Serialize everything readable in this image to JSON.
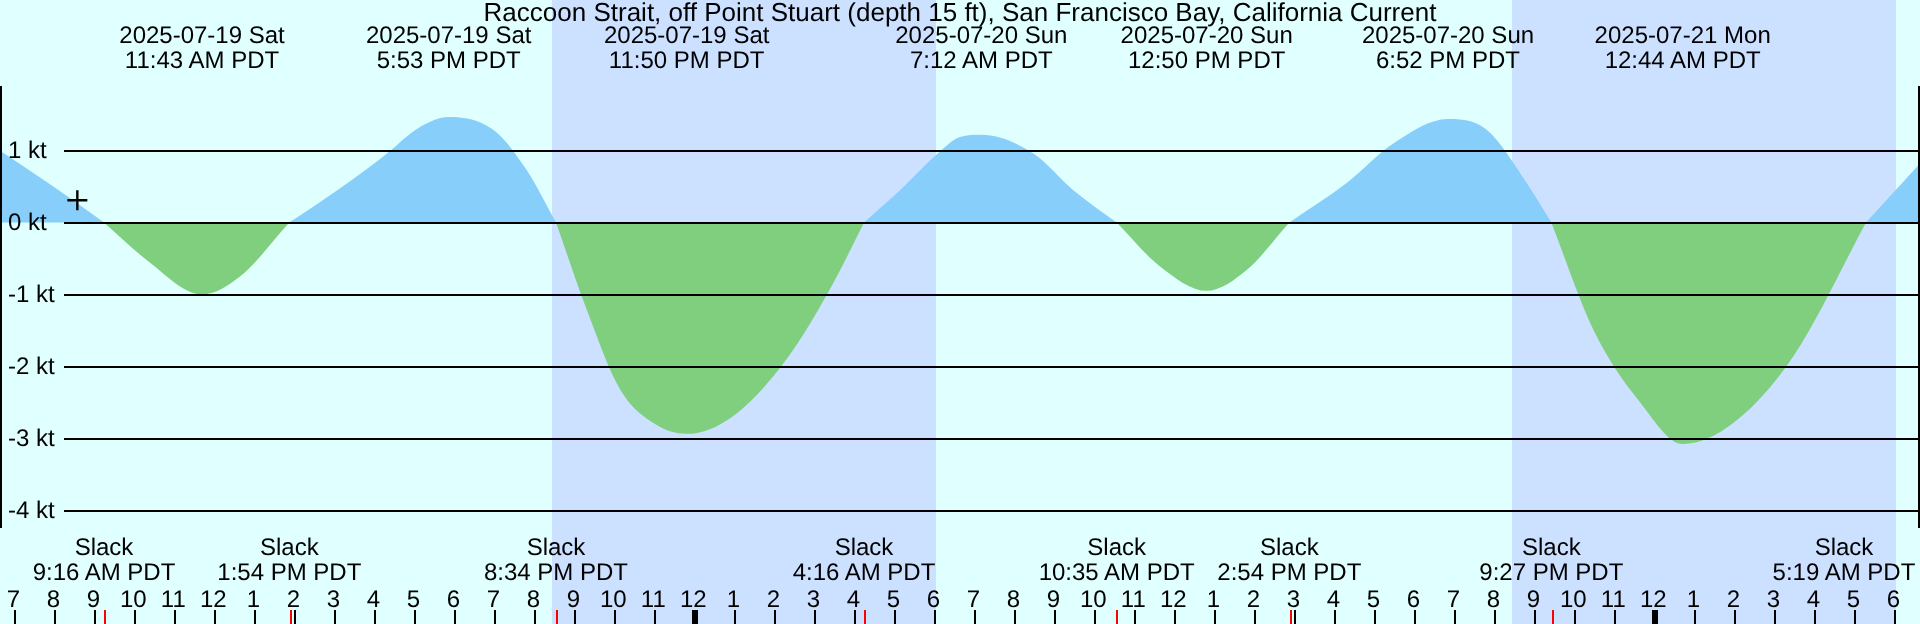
{
  "chart_data": {
    "type": "area",
    "title": "Raccoon Strait, off Point Stuart (depth 15 ft), San Francisco Bay, California Current",
    "x": [
      "2025-07-19T06:40",
      "2025-07-19T08:00",
      "2025-07-19T09:16",
      "2025-07-19T10:20",
      "2025-07-19T11:43",
      "2025-07-19T12:40",
      "2025-07-19T13:54",
      "2025-07-19T15:00",
      "2025-07-19T16:15",
      "2025-07-19T17:10",
      "2025-07-19T17:53",
      "2025-07-19T19:00",
      "2025-07-19T19:50",
      "2025-07-19T20:34",
      "2025-07-19T21:20",
      "2025-07-19T22:10",
      "2025-07-19T23:00",
      "2025-07-19T23:50",
      "2025-07-20T01:00",
      "2025-07-20T02:20",
      "2025-07-20T03:30",
      "2025-07-20T04:16",
      "2025-07-20T05:10",
      "2025-07-20T06:10",
      "2025-07-20T06:40",
      "2025-07-20T07:12",
      "2025-07-20T08:30",
      "2025-07-20T09:30",
      "2025-07-20T10:35",
      "2025-07-20T11:40",
      "2025-07-20T12:50",
      "2025-07-20T13:50",
      "2025-07-20T14:54",
      "2025-07-20T16:20",
      "2025-07-20T17:30",
      "2025-07-20T18:52",
      "2025-07-20T19:50",
      "2025-07-20T20:50",
      "2025-07-20T21:27",
      "2025-07-20T22:30",
      "2025-07-20T23:40",
      "2025-07-21T00:44",
      "2025-07-21T02:00",
      "2025-07-21T03:30",
      "2025-07-21T05:19",
      "2025-07-21T06:40"
    ],
    "series": [
      {
        "color": "#87cefa",
        "values": [
          1.0,
          0.5,
          0,
          null,
          null,
          null,
          0,
          0.41,
          0.92,
          1.33,
          1.47,
          1.29,
          0.73,
          0,
          null,
          null,
          null,
          null,
          null,
          null,
          null,
          0,
          0.45,
          0.99,
          1.19,
          1.22,
          0.96,
          0.45,
          0,
          null,
          null,
          null,
          0,
          0.55,
          1.1,
          1.44,
          1.29,
          0.55,
          0,
          null,
          null,
          null,
          null,
          null,
          0,
          0.82
        ]
      },
      {
        "color": "#7fcf7f",
        "values": [
          null,
          null,
          0,
          -0.52,
          -1.0,
          -0.75,
          0,
          null,
          null,
          null,
          null,
          null,
          null,
          0,
          -1.21,
          -2.32,
          -2.79,
          -2.94,
          -2.69,
          -1.9,
          -0.84,
          0,
          null,
          null,
          null,
          null,
          null,
          null,
          0,
          -0.61,
          -0.95,
          -0.66,
          0,
          null,
          null,
          null,
          null,
          null,
          0,
          -1.49,
          -2.5,
          -3.08,
          -2.79,
          -1.86,
          0,
          null
        ]
      },
      {
        "type": "scatter",
        "x": [
          "2025-07-19T08:36"
        ],
        "values": [
          0.31
        ],
        "color": "#000000",
        "marker": "cross"
      }
    ],
    "xlim": [
      "2025-07-19T06:40",
      "2025-07-21T06:40"
    ],
    "xticks": [
      {
        "value": "2025-07-19T07:00",
        "label": "7"
      },
      {
        "value": "2025-07-19T08:00",
        "label": "8"
      },
      {
        "value": "2025-07-19T09:00",
        "label": "9"
      },
      {
        "value": "2025-07-19T10:00",
        "label": "10"
      },
      {
        "value": "2025-07-19T11:00",
        "label": "11"
      },
      {
        "value": "2025-07-19T12:00",
        "label": "12"
      },
      {
        "value": "2025-07-19T13:00",
        "label": "1"
      },
      {
        "value": "2025-07-19T14:00",
        "label": "2"
      },
      {
        "value": "2025-07-19T15:00",
        "label": "3"
      },
      {
        "value": "2025-07-19T16:00",
        "label": "4"
      },
      {
        "value": "2025-07-19T17:00",
        "label": "5"
      },
      {
        "value": "2025-07-19T18:00",
        "label": "6"
      },
      {
        "value": "2025-07-19T19:00",
        "label": "7"
      },
      {
        "value": "2025-07-19T20:00",
        "label": "8"
      },
      {
        "value": "2025-07-19T21:00",
        "label": "9"
      },
      {
        "value": "2025-07-19T22:00",
        "label": "10"
      },
      {
        "value": "2025-07-19T23:00",
        "label": "11"
      },
      {
        "value": "2025-07-20T00:00",
        "label": "12"
      },
      {
        "value": "2025-07-20T01:00",
        "label": "1"
      },
      {
        "value": "2025-07-20T02:00",
        "label": "2"
      },
      {
        "value": "2025-07-20T03:00",
        "label": "3"
      },
      {
        "value": "2025-07-20T04:00",
        "label": "4"
      },
      {
        "value": "2025-07-20T05:00",
        "label": "5"
      },
      {
        "value": "2025-07-20T06:00",
        "label": "6"
      },
      {
        "value": "2025-07-20T07:00",
        "label": "7"
      },
      {
        "value": "2025-07-20T08:00",
        "label": "8"
      },
      {
        "value": "2025-07-20T09:00",
        "label": "9"
      },
      {
        "value": "2025-07-20T10:00",
        "label": "10"
      },
      {
        "value": "2025-07-20T11:00",
        "label": "11"
      },
      {
        "value": "2025-07-20T12:00",
        "label": "12"
      },
      {
        "value": "2025-07-20T13:00",
        "label": "1"
      },
      {
        "value": "2025-07-20T14:00",
        "label": "2"
      },
      {
        "value": "2025-07-20T15:00",
        "label": "3"
      },
      {
        "value": "2025-07-20T16:00",
        "label": "4"
      },
      {
        "value": "2025-07-20T17:00",
        "label": "5"
      },
      {
        "value": "2025-07-20T18:00",
        "label": "6"
      },
      {
        "value": "2025-07-20T19:00",
        "label": "7"
      },
      {
        "value": "2025-07-20T20:00",
        "label": "8"
      },
      {
        "value": "2025-07-20T21:00",
        "label": "9"
      },
      {
        "value": "2025-07-20T22:00",
        "label": "10"
      },
      {
        "value": "2025-07-20T23:00",
        "label": "11"
      },
      {
        "value": "2025-07-21T00:00",
        "label": "12"
      },
      {
        "value": "2025-07-21T01:00",
        "label": "1"
      },
      {
        "value": "2025-07-21T02:00",
        "label": "2"
      },
      {
        "value": "2025-07-21T03:00",
        "label": "3"
      },
      {
        "value": "2025-07-21T04:00",
        "label": "4"
      },
      {
        "value": "2025-07-21T05:00",
        "label": "5"
      },
      {
        "value": "2025-07-21T06:00",
        "label": "6"
      }
    ],
    "ylim": [
      -4.25,
      1.9
    ],
    "yticks": [
      {
        "value": 1,
        "label": "1 kt"
      },
      {
        "value": 0,
        "label": "0 kt"
      },
      {
        "value": -1,
        "label": "-1 kt"
      },
      {
        "value": -2,
        "label": "-2 kt"
      },
      {
        "value": -3,
        "label": "-3 kt"
      },
      {
        "value": -4,
        "label": "-4 kt"
      }
    ],
    "grid": "y",
    "bands": [
      {
        "axis": "x",
        "from": "2025-07-19T20:28",
        "to": "2025-07-20T06:04",
        "color": "#cce0ff"
      },
      {
        "axis": "x",
        "from": "2025-07-20T20:28",
        "to": "2025-07-21T06:04",
        "color": "#cce0ff"
      }
    ],
    "annotations": [
      "2025-07-19 Sat\n11:43 AM PDT",
      "2025-07-19 Sat\n5:53 PM PDT",
      "2025-07-19 Sat\n11:50 PM PDT",
      "2025-07-20 Sun\n7:12 AM PDT",
      "2025-07-20 Sun\n12:50 PM PDT",
      "2025-07-20 Sun\n6:52 PM PDT",
      "2025-07-21 Mon\n12:44 AM PDT",
      {
        "text": "Slack\n9:16 AM PDT",
        "x": "2025-07-19T09:16"
      },
      {
        "text": "Slack\n1:54 PM PDT",
        "x": "2025-07-19T13:54"
      },
      {
        "text": "Slack\n8:34 PM PDT",
        "x": "2025-07-19T20:34"
      },
      {
        "text": "Slack\n4:16 AM PDT",
        "x": "2025-07-20T04:16"
      },
      {
        "text": "Slack\n10:35 AM PDT",
        "x": "2025-07-20T10:35"
      },
      {
        "text": "Slack\n2:54 PM PDT",
        "x": "2025-07-20T14:54"
      },
      {
        "text": "Slack\n9:27 PM PDT",
        "x": "2025-07-20T21:27"
      },
      "Slack\n5:19 AM PDT"
    ]
  }
}
